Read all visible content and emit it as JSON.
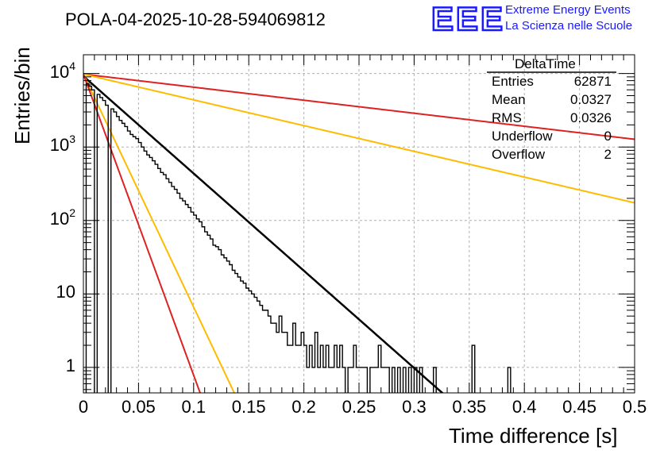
{
  "chart_data": {
    "type": "histogram",
    "title": "POLA-04-2025-10-28-594069812",
    "xlabel": "Time difference [s]",
    "ylabel": "Entries/bin",
    "xlim": [
      0,
      0.5
    ],
    "ylim": [
      0.45,
      18000
    ],
    "yscale": "log",
    "grid": true,
    "bin_width": 0.0025,
    "x_ticks": [
      "0",
      "0.05",
      "0.1",
      "0.15",
      "0.2",
      "0.25",
      "0.3",
      "0.35",
      "0.4",
      "0.45",
      "0.5"
    ],
    "x_tick_values": [
      0,
      0.05,
      0.1,
      0.15,
      0.2,
      0.25,
      0.3,
      0.35,
      0.4,
      0.45,
      0.5
    ],
    "y_ticks": [
      {
        "value": 1,
        "label": "1"
      },
      {
        "value": 10,
        "label": "10"
      },
      {
        "value": 100,
        "base": "10",
        "exp": "2"
      },
      {
        "value": 1000,
        "base": "10",
        "exp": "3"
      },
      {
        "value": 10000,
        "base": "10",
        "exp": "4"
      }
    ],
    "histogram": {
      "name": "DeltaTime",
      "bins": [
        {
          "x": 0.0025,
          "y": 7300
        },
        {
          "x": 0.005,
          "y": 6700
        },
        {
          "x": 0.0075,
          "y": 6000
        },
        {
          "x": 0.0125,
          "y": 5200
        },
        {
          "x": 0.015,
          "y": 4700
        },
        {
          "x": 0.0175,
          "y": 4300
        },
        {
          "x": 0.02,
          "y": 3700
        },
        {
          "x": 0.025,
          "y": 3300
        },
        {
          "x": 0.0275,
          "y": 3000
        },
        {
          "x": 0.03,
          "y": 2600
        },
        {
          "x": 0.0325,
          "y": 2300
        },
        {
          "x": 0.035,
          "y": 2100
        },
        {
          "x": 0.0375,
          "y": 1900
        },
        {
          "x": 0.04,
          "y": 1650
        },
        {
          "x": 0.0425,
          "y": 1480
        },
        {
          "x": 0.045,
          "y": 1380
        },
        {
          "x": 0.0475,
          "y": 1300
        },
        {
          "x": 0.05,
          "y": 1150
        },
        {
          "x": 0.0525,
          "y": 1000
        },
        {
          "x": 0.055,
          "y": 880
        },
        {
          "x": 0.0575,
          "y": 780
        },
        {
          "x": 0.06,
          "y": 720
        },
        {
          "x": 0.0625,
          "y": 650
        },
        {
          "x": 0.065,
          "y": 580
        },
        {
          "x": 0.0675,
          "y": 510
        },
        {
          "x": 0.07,
          "y": 450
        },
        {
          "x": 0.0725,
          "y": 420
        },
        {
          "x": 0.075,
          "y": 370
        },
        {
          "x": 0.0775,
          "y": 330
        },
        {
          "x": 0.08,
          "y": 290
        },
        {
          "x": 0.0825,
          "y": 265
        },
        {
          "x": 0.085,
          "y": 235
        },
        {
          "x": 0.0875,
          "y": 200
        },
        {
          "x": 0.09,
          "y": 185
        },
        {
          "x": 0.0925,
          "y": 165
        },
        {
          "x": 0.095,
          "y": 150
        },
        {
          "x": 0.0975,
          "y": 130
        },
        {
          "x": 0.1,
          "y": 118
        },
        {
          "x": 0.1025,
          "y": 105
        },
        {
          "x": 0.105,
          "y": 96
        },
        {
          "x": 0.1075,
          "y": 82
        },
        {
          "x": 0.11,
          "y": 70
        },
        {
          "x": 0.1125,
          "y": 63
        },
        {
          "x": 0.115,
          "y": 56
        },
        {
          "x": 0.1175,
          "y": 46
        },
        {
          "x": 0.12,
          "y": 44
        },
        {
          "x": 0.1225,
          "y": 40
        },
        {
          "x": 0.125,
          "y": 34
        },
        {
          "x": 0.1275,
          "y": 31
        },
        {
          "x": 0.13,
          "y": 28
        },
        {
          "x": 0.1325,
          "y": 25
        },
        {
          "x": 0.135,
          "y": 21
        },
        {
          "x": 0.1375,
          "y": 19
        },
        {
          "x": 0.14,
          "y": 17
        },
        {
          "x": 0.1425,
          "y": 15
        },
        {
          "x": 0.145,
          "y": 14
        },
        {
          "x": 0.1475,
          "y": 12
        },
        {
          "x": 0.15,
          "y": 11
        },
        {
          "x": 0.1525,
          "y": 10
        },
        {
          "x": 0.155,
          "y": 9
        },
        {
          "x": 0.1575,
          "y": 8
        },
        {
          "x": 0.16,
          "y": 7
        },
        {
          "x": 0.1625,
          "y": 6
        },
        {
          "x": 0.165,
          "y": 6
        },
        {
          "x": 0.1675,
          "y": 5
        },
        {
          "x": 0.17,
          "y": 4
        },
        {
          "x": 0.1725,
          "y": 4
        },
        {
          "x": 0.175,
          "y": 3
        },
        {
          "x": 0.1775,
          "y": 5
        },
        {
          "x": 0.18,
          "y": 3
        },
        {
          "x": 0.1825,
          "y": 3
        },
        {
          "x": 0.185,
          "y": 2
        },
        {
          "x": 0.1875,
          "y": 2
        },
        {
          "x": 0.19,
          "y": 4
        },
        {
          "x": 0.1925,
          "y": 2
        },
        {
          "x": 0.195,
          "y": 2
        },
        {
          "x": 0.1975,
          "y": 3
        },
        {
          "x": 0.2,
          "y": 2
        },
        {
          "x": 0.2025,
          "y": 1
        },
        {
          "x": 0.205,
          "y": 2
        },
        {
          "x": 0.2075,
          "y": 1
        },
        {
          "x": 0.21,
          "y": 3
        },
        {
          "x": 0.2125,
          "y": 1
        },
        {
          "x": 0.215,
          "y": 2
        },
        {
          "x": 0.2175,
          "y": 1
        },
        {
          "x": 0.22,
          "y": 2
        },
        {
          "x": 0.2225,
          "y": 1
        },
        {
          "x": 0.225,
          "y": 1
        },
        {
          "x": 0.2275,
          "y": 2
        },
        {
          "x": 0.23,
          "y": 1
        },
        {
          "x": 0.2325,
          "y": 2
        },
        {
          "x": 0.235,
          "y": 1
        },
        {
          "x": 0.24,
          "y": 1
        },
        {
          "x": 0.2425,
          "y": 1
        },
        {
          "x": 0.245,
          "y": 2
        },
        {
          "x": 0.2475,
          "y": 1
        },
        {
          "x": 0.25,
          "y": 1
        },
        {
          "x": 0.2525,
          "y": 1
        },
        {
          "x": 0.255,
          "y": 1
        },
        {
          "x": 0.26,
          "y": 1
        },
        {
          "x": 0.2625,
          "y": 1
        },
        {
          "x": 0.265,
          "y": 1
        },
        {
          "x": 0.2675,
          "y": 2
        },
        {
          "x": 0.27,
          "y": 1
        },
        {
          "x": 0.2725,
          "y": 1
        },
        {
          "x": 0.275,
          "y": 1
        },
        {
          "x": 0.28,
          "y": 1
        },
        {
          "x": 0.285,
          "y": 1
        },
        {
          "x": 0.29,
          "y": 1
        },
        {
          "x": 0.295,
          "y": 1
        },
        {
          "x": 0.3,
          "y": 1
        },
        {
          "x": 0.305,
          "y": 1
        },
        {
          "x": 0.3175,
          "y": 1
        },
        {
          "x": 0.3525,
          "y": 2
        },
        {
          "x": 0.385,
          "y": 1
        }
      ]
    },
    "fits": [
      {
        "name": "exponential-fit",
        "color": "#000000",
        "y0": 9200,
        "tau": 0.0328
      },
      {
        "name": "slow-decay-red",
        "color": "#dd2222",
        "y0": 9800,
        "tau": 0.245
      },
      {
        "name": "slow-decay-yellow",
        "color": "#ffbb00",
        "y0": 9800,
        "tau": 0.124
      },
      {
        "name": "fast-decay-yellow",
        "color": "#ffbb00",
        "y0": 9800,
        "tau": 0.0137
      },
      {
        "name": "fast-decay-red",
        "color": "#dd2222",
        "y0": 9800,
        "tau": 0.0106
      }
    ],
    "stats": {
      "title": "DeltaTime",
      "rows": [
        {
          "label": "Entries",
          "value": "62871"
        },
        {
          "label": "Mean",
          "value": "0.0327"
        },
        {
          "label": "RMS",
          "value": "0.0326"
        },
        {
          "label": "Underflow",
          "value": "0"
        },
        {
          "label": "Overflow",
          "value": "2"
        }
      ]
    }
  },
  "logo": {
    "text": "EEE",
    "line1": "Extreme Energy Events",
    "line2": "La Scienza nelle Scuole",
    "color": "#1a1aff"
  }
}
